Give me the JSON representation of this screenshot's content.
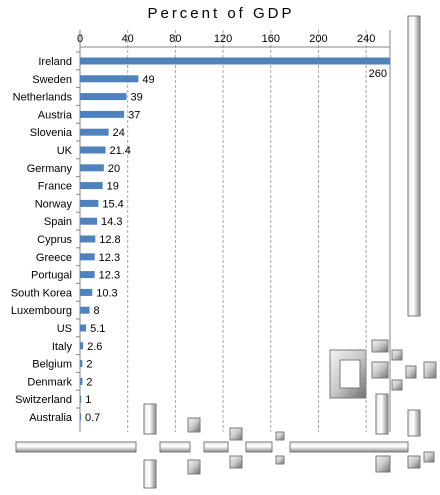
{
  "chart_data": {
    "type": "bar",
    "orientation": "horizontal",
    "title": "Percent of GDP",
    "xlim": [
      0,
      260
    ],
    "x_ticks": [
      0,
      40,
      80,
      120,
      160,
      200,
      240
    ],
    "grid": true,
    "categories": [
      "Ireland",
      "Sweden",
      "Netherlands",
      "Austria",
      "Slovenia",
      "UK",
      "Germany",
      "France",
      "Norway",
      "Spain",
      "Cyprus",
      "Greece",
      "Portugal",
      "South Korea",
      "Luxembourg",
      "US",
      "Italy",
      "Belgium",
      "Denmark",
      "Switzerland",
      "Australia"
    ],
    "values": [
      260,
      49,
      39,
      37,
      24,
      21.4,
      20,
      19,
      15.4,
      14.3,
      12.8,
      12.3,
      12.3,
      10.3,
      8,
      5.1,
      2.6,
      2,
      2,
      1,
      0.7
    ],
    "data_labels": [
      "260",
      "49",
      "39",
      "37",
      "24",
      "21.4",
      "20",
      "19",
      "15.4",
      "14.3",
      "12.8",
      "12.3",
      "12.3",
      "10.3",
      "8",
      "5.1",
      "2.6",
      "2",
      "2",
      "1",
      "0.7"
    ],
    "colors": {
      "bar": "#4f81bd",
      "grid": "#a6a6a6",
      "axis": "#868686",
      "text": "#000000"
    }
  }
}
